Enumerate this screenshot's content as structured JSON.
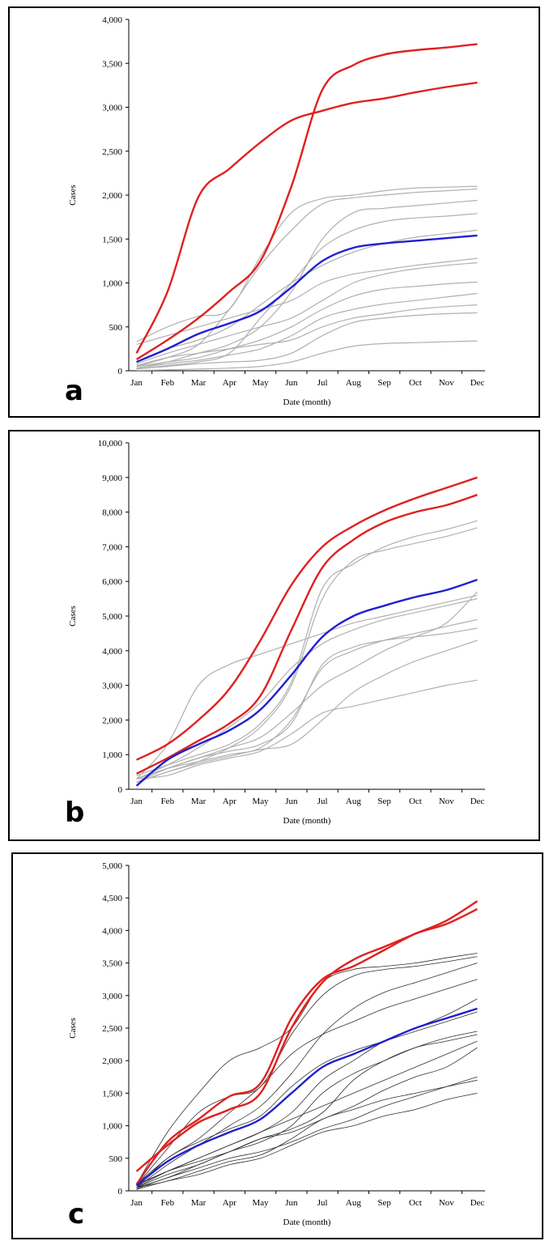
{
  "chart_data": [
    {
      "type": "line",
      "panel_letter": "a",
      "xlabel": "Date (month)",
      "ylabel": "Cases",
      "categories": [
        "Jan",
        "Feb",
        "Mar",
        "Apr",
        "May",
        "Jun",
        "Jul",
        "Aug",
        "Sep",
        "Oct",
        "Nov",
        "Dec"
      ],
      "y_ticks": [
        "0",
        "500",
        "1,000",
        "1,500",
        "2,000",
        "2,500",
        "3,000",
        "3,500",
        "4,000"
      ],
      "ylim": [
        0,
        4000
      ],
      "grid": false,
      "colors": {
        "highlight": "#e02020",
        "mean": "#2020d0",
        "background": "#b0b0b0"
      },
      "series": [
        {
          "role": "highlight",
          "values": [
            200,
            900,
            1980,
            2300,
            2600,
            2850,
            2960,
            3050,
            3100,
            3170,
            3230,
            3280
          ]
        },
        {
          "role": "highlight",
          "values": [
            130,
            350,
            600,
            900,
            1250,
            2100,
            3200,
            3480,
            3600,
            3650,
            3680,
            3720
          ]
        },
        {
          "role": "mean",
          "values": [
            100,
            250,
            420,
            540,
            680,
            950,
            1250,
            1400,
            1450,
            1480,
            1510,
            1540
          ]
        },
        {
          "role": "background",
          "values": [
            330,
            500,
            620,
            700,
            1300,
            1800,
            1960,
            2000,
            2050,
            2080,
            2090,
            2100
          ]
        },
        {
          "role": "background",
          "values": [
            50,
            150,
            300,
            700,
            1200,
            1600,
            1900,
            1970,
            2000,
            2030,
            2050,
            2070
          ]
        },
        {
          "role": "background",
          "values": [
            30,
            100,
            200,
            300,
            500,
            900,
            1500,
            1800,
            1850,
            1880,
            1910,
            1940
          ]
        },
        {
          "role": "background",
          "values": [
            20,
            60,
            100,
            200,
            600,
            1000,
            1400,
            1600,
            1700,
            1740,
            1760,
            1790
          ]
        },
        {
          "role": "background",
          "values": [
            100,
            250,
            350,
            500,
            750,
            1000,
            1200,
            1350,
            1450,
            1520,
            1560,
            1600
          ]
        },
        {
          "role": "background",
          "values": [
            300,
            400,
            500,
            600,
            700,
            800,
            1000,
            1100,
            1150,
            1200,
            1240,
            1280
          ]
        },
        {
          "role": "background",
          "values": [
            80,
            200,
            300,
            400,
            500,
            600,
            800,
            1000,
            1100,
            1160,
            1200,
            1230
          ]
        },
        {
          "role": "background",
          "values": [
            50,
            100,
            150,
            250,
            350,
            500,
            700,
            850,
            930,
            960,
            990,
            1010
          ]
        },
        {
          "role": "background",
          "values": [
            30,
            80,
            120,
            180,
            250,
            400,
            600,
            700,
            760,
            800,
            840,
            880
          ]
        },
        {
          "role": "background",
          "values": [
            60,
            150,
            200,
            250,
            300,
            350,
            500,
            600,
            650,
            700,
            730,
            750
          ]
        },
        {
          "role": "background",
          "values": [
            20,
            50,
            80,
            100,
            120,
            200,
            400,
            550,
            600,
            630,
            650,
            660
          ]
        },
        {
          "role": "background",
          "values": [
            5,
            10,
            20,
            30,
            50,
            100,
            200,
            280,
            310,
            320,
            330,
            340
          ]
        }
      ]
    },
    {
      "type": "line",
      "panel_letter": "b",
      "xlabel": "Date (month)",
      "ylabel": "Cases",
      "categories": [
        "Jan",
        "Feb",
        "Mar",
        "Apr",
        "May",
        "Jun",
        "Jul",
        "Aug",
        "Sep",
        "Oct",
        "Nov",
        "Dec"
      ],
      "y_ticks": [
        "0",
        "1,000",
        "2,000",
        "3,000",
        "4,000",
        "5,000",
        "6,000",
        "7,000",
        "8,000",
        "9,000",
        "10,000"
      ],
      "ylim": [
        0,
        10000
      ],
      "grid": false,
      "colors": {
        "highlight": "#e02020",
        "mean": "#2020d0",
        "background": "#b0b0b0"
      },
      "series": [
        {
          "role": "highlight",
          "values": [
            850,
            1300,
            2000,
            2900,
            4300,
            5900,
            7000,
            7600,
            8050,
            8400,
            8700,
            9000
          ]
        },
        {
          "role": "highlight",
          "values": [
            450,
            900,
            1400,
            1900,
            2700,
            4600,
            6400,
            7200,
            7700,
            8000,
            8200,
            8500
          ]
        },
        {
          "role": "mean",
          "values": [
            100,
            850,
            1300,
            1700,
            2300,
            3300,
            4400,
            5000,
            5300,
            5550,
            5750,
            6050
          ]
        },
        {
          "role": "background",
          "values": [
            300,
            1300,
            3000,
            3600,
            3900,
            4200,
            4500,
            4800,
            5000,
            5200,
            5400,
            5600
          ]
        },
        {
          "role": "background",
          "values": [
            300,
            700,
            1200,
            1800,
            2500,
            3500,
            4200,
            4600,
            4900,
            5100,
            5300,
            5500
          ]
        },
        {
          "role": "background",
          "values": [
            200,
            500,
            800,
            1200,
            1800,
            3000,
            5500,
            6600,
            6900,
            7100,
            7300,
            7550
          ]
        },
        {
          "role": "background",
          "values": [
            400,
            700,
            1000,
            1300,
            1900,
            3100,
            5800,
            6500,
            7000,
            7300,
            7500,
            7750
          ]
        },
        {
          "role": "background",
          "values": [
            200,
            600,
            900,
            1200,
            1500,
            2200,
            3000,
            3500,
            4000,
            4400,
            4800,
            5700
          ]
        },
        {
          "role": "background",
          "values": [
            300,
            600,
            800,
            1000,
            1200,
            2000,
            3500,
            4000,
            4300,
            4500,
            4700,
            4900
          ]
        },
        {
          "role": "background",
          "values": [
            200,
            500,
            750,
            950,
            1150,
            1300,
            2000,
            2800,
            3300,
            3700,
            4000,
            4300
          ]
        },
        {
          "role": "background",
          "values": [
            300,
            400,
            700,
            900,
            1100,
            1600,
            2200,
            2400,
            2600,
            2800,
            3000,
            3150
          ]
        },
        {
          "role": "background",
          "values": [
            300,
            600,
            900,
            1100,
            1300,
            1900,
            3600,
            4100,
            4300,
            4400,
            4500,
            4650
          ]
        }
      ]
    },
    {
      "type": "line",
      "panel_letter": "c",
      "xlabel": "Date (month)",
      "ylabel": "Cases",
      "categories": [
        "Jan",
        "Feb",
        "Mar",
        "Apr",
        "May",
        "Jun",
        "Jul",
        "Aug",
        "Sep",
        "Oct",
        "Nov",
        "Dec"
      ],
      "y_ticks": [
        "0",
        "500",
        "1,000",
        "1,500",
        "2,000",
        "2,500",
        "3,000",
        "3,500",
        "4,000",
        "4,500",
        "5,000"
      ],
      "ylim": [
        0,
        5000
      ],
      "grid": false,
      "colors": {
        "highlight": "#e02020",
        "mean": "#2020d0",
        "background": "#303030"
      },
      "series": [
        {
          "role": "highlight",
          "values": [
            300,
            700,
            1050,
            1250,
            1500,
            2500,
            3200,
            3550,
            3750,
            3950,
            4150,
            4450
          ]
        },
        {
          "role": "highlight",
          "values": [
            100,
            750,
            1100,
            1450,
            1650,
            2650,
            3250,
            3450,
            3700,
            3950,
            4100,
            4330
          ]
        },
        {
          "role": "mean",
          "values": [
            80,
            450,
            700,
            900,
            1100,
            1500,
            1900,
            2100,
            2300,
            2500,
            2650,
            2800
          ]
        },
        {
          "role": "background",
          "values": [
            50,
            500,
            750,
            950,
            1150,
            1600,
            1950,
            2150,
            2300,
            2450,
            2600,
            2750
          ]
        },
        {
          "role": "background",
          "values": [
            100,
            900,
            1500,
            2000,
            2200,
            2500,
            3200,
            3400,
            3450,
            3500,
            3580,
            3650
          ]
        },
        {
          "role": "background",
          "values": [
            80,
            650,
            1200,
            1450,
            1600,
            2400,
            3000,
            3300,
            3400,
            3450,
            3520,
            3600
          ]
        },
        {
          "role": "background",
          "values": [
            50,
            400,
            700,
            1000,
            1300,
            1800,
            2400,
            2800,
            3050,
            3200,
            3350,
            3500
          ]
        },
        {
          "role": "background",
          "values": [
            100,
            500,
            800,
            1200,
            1600,
            2100,
            2400,
            2600,
            2800,
            2950,
            3100,
            3250
          ]
        },
        {
          "role": "background",
          "values": [
            50,
            300,
            500,
            700,
            900,
            1200,
            1700,
            2000,
            2300,
            2500,
            2700,
            2950
          ]
        },
        {
          "role": "background",
          "values": [
            50,
            250,
            400,
            600,
            750,
            1000,
            1500,
            1800,
            2000,
            2200,
            2350,
            2450
          ]
        },
        {
          "role": "background",
          "values": [
            80,
            300,
            450,
            600,
            800,
            950,
            1200,
            1700,
            2000,
            2200,
            2300,
            2400
          ]
        },
        {
          "role": "background",
          "values": [
            100,
            300,
            500,
            700,
            900,
            1100,
            1300,
            1500,
            1700,
            1900,
            2100,
            2300
          ]
        },
        {
          "role": "background",
          "values": [
            50,
            200,
            400,
            600,
            800,
            900,
            1100,
            1300,
            1550,
            1750,
            1900,
            2200
          ]
        },
        {
          "role": "background",
          "values": [
            50,
            150,
            300,
            450,
            550,
            800,
            1100,
            1250,
            1400,
            1500,
            1600,
            1700
          ]
        },
        {
          "role": "background",
          "values": [
            30,
            200,
            350,
            500,
            600,
            750,
            950,
            1100,
            1300,
            1450,
            1600,
            1750
          ]
        },
        {
          "role": "background",
          "values": [
            20,
            150,
            250,
            400,
            500,
            700,
            900,
            1000,
            1150,
            1250,
            1400,
            1500
          ]
        }
      ]
    }
  ]
}
